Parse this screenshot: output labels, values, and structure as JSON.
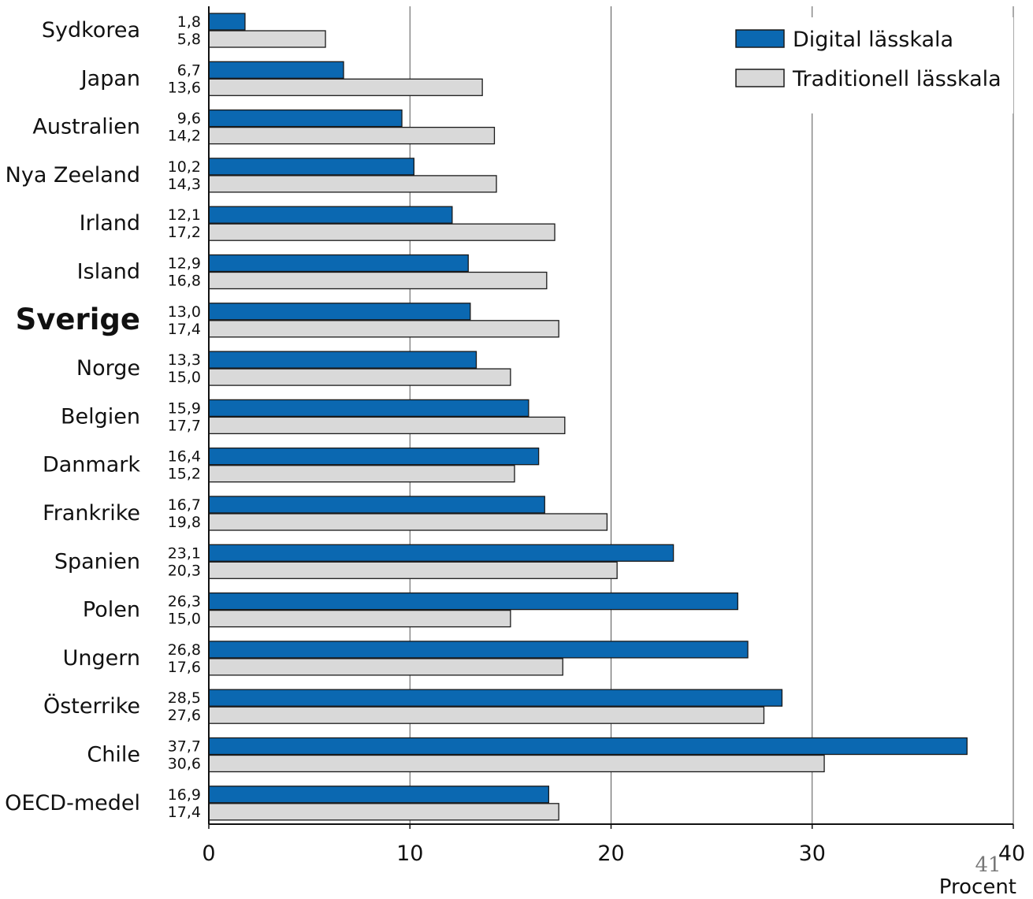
{
  "chart_data": {
    "type": "bar",
    "orientation": "horizontal",
    "categories": [
      "Sydkorea",
      "Japan",
      "Australien",
      "Nya Zeeland",
      "Irland",
      "Island",
      "Sverige",
      "Norge",
      "Belgien",
      "Danmark",
      "Frankrike",
      "Spanien",
      "Polen",
      "Ungern",
      "Österrike",
      "Chile",
      "OECD-medel"
    ],
    "highlight_category": "Sverige",
    "series": [
      {
        "name": "Digital lässkala",
        "color": "#0b68b1",
        "values": [
          1.8,
          6.7,
          9.6,
          10.2,
          12.1,
          12.9,
          13.0,
          13.3,
          15.9,
          16.4,
          16.7,
          23.1,
          26.3,
          26.8,
          28.5,
          37.7,
          16.9
        ],
        "labels": [
          "1,8",
          "6,7",
          "9,6",
          "10,2",
          "12,1",
          "12,9",
          "13,0",
          "13,3",
          "15,9",
          "16,4",
          "16,7",
          "23,1",
          "26,3",
          "26,8",
          "28,5",
          "37,7",
          "16,9"
        ]
      },
      {
        "name": "Traditionell lässkala",
        "color": "#d9d9d9",
        "values": [
          5.8,
          13.6,
          14.2,
          14.3,
          17.2,
          16.8,
          17.4,
          15.0,
          17.7,
          15.2,
          19.8,
          20.3,
          15.0,
          17.6,
          27.6,
          30.6,
          17.4
        ],
        "labels": [
          "5,8",
          "13,6",
          "14,2",
          "14,3",
          "17,2",
          "16,8",
          "17,4",
          "15,0",
          "17,7",
          "15,2",
          "19,8",
          "20,3",
          "15,0",
          "17,6",
          "27,6",
          "30,6",
          "17,4"
        ]
      }
    ],
    "xlim": [
      0,
      40
    ],
    "xticks": [
      0,
      10,
      20,
      30,
      40
    ],
    "xtick_labels": [
      "0",
      "10",
      "20",
      "30",
      "40"
    ],
    "xlabel": "Procent",
    "ylabel": "",
    "title": "",
    "grid": "vertical",
    "legend_position": "top-right"
  },
  "page_number": "41"
}
